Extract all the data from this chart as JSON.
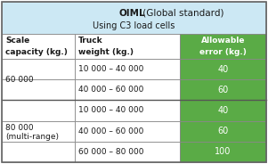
{
  "title_bold": "OIML",
  "title_normal": " (Global standard)",
  "subtitle": "Using C3 load cells",
  "header_bg": "#cce8f4",
  "green_bg": "#5aab46",
  "border_color": "#888888",
  "col1_header_line1": "Scale",
  "col1_header_line2": "capacity (kg.)",
  "col2_header_line1": "Truck",
  "col2_header_line2": "weight (kg.)",
  "col3_header_line1": "Allowable",
  "col3_header_line2": "error (kg.)",
  "truck_ranges": [
    "10 000 – 40 000",
    "40 000 – 60 000",
    "10 000 – 40 000",
    "40 000 – 60 000",
    "60 000 – 80 000"
  ],
  "errors": [
    "40",
    "60",
    "40",
    "60",
    "100"
  ],
  "scale_group1_text": "60 000",
  "scale_group2_line1": "80 000",
  "scale_group2_line2": "(multi-range)",
  "fig_w": 3.01,
  "fig_h": 1.84,
  "dpi": 100
}
